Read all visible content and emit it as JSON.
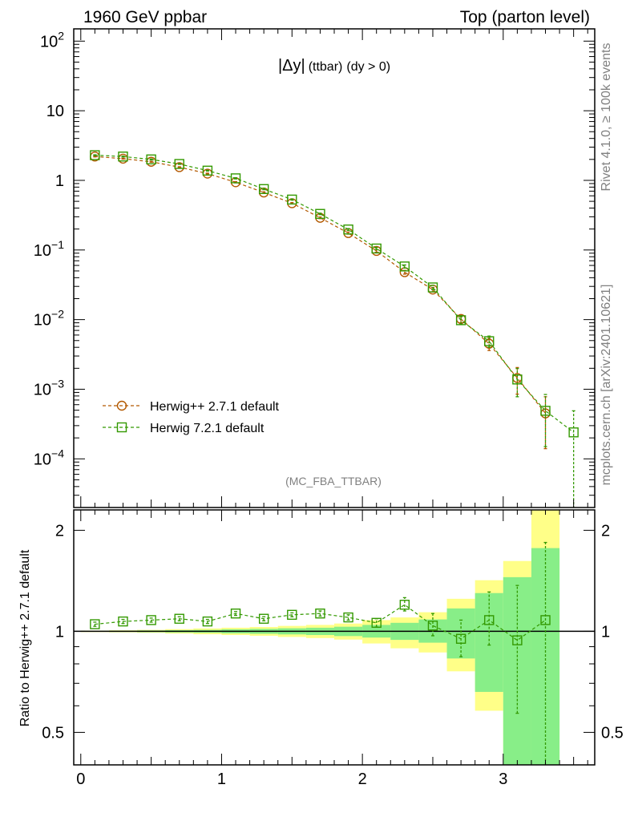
{
  "header": {
    "left": "1960 GeV ppbar",
    "right": "Top (parton level)"
  },
  "side": {
    "rivet": "Rivet 4.1.0, ≥ 100k events",
    "mcplots": "mcplots.cern.ch [arXiv:2401.10621]"
  },
  "colors": {
    "herwigpp": "#b35900",
    "herwig7": "#339900",
    "band_yellow": "#ffff88",
    "band_green": "#88ee88"
  },
  "chart_data": [
    {
      "type": "line",
      "title_prefix": "|Δy|",
      "title_sub": "(ttbar)",
      "title_suffix": "(dy > 0)",
      "analysis_tag": "(MC_FBA_TTBAR)",
      "yscale": "log",
      "ylim": [
        2e-05,
        150
      ],
      "xlim": [
        -0.05,
        3.65
      ],
      "y_ticks": [
        {
          "v": 0.0001,
          "base": "10",
          "exp": "−4"
        },
        {
          "v": 0.001,
          "base": "10",
          "exp": "−3"
        },
        {
          "v": 0.01,
          "base": "10",
          "exp": "−2"
        },
        {
          "v": 0.1,
          "base": "10",
          "exp": "−1"
        },
        {
          "v": 1,
          "base": "1",
          "exp": ""
        },
        {
          "v": 10,
          "base": "10",
          "exp": ""
        },
        {
          "v": 100,
          "base": "10",
          "exp": "2"
        }
      ],
      "legend_position": "lower-left",
      "series": [
        {
          "name": "Herwig++ 2.7.1 default",
          "marker": "circle",
          "x": [
            0.1,
            0.3,
            0.5,
            0.7,
            0.9,
            1.1,
            1.3,
            1.5,
            1.7,
            1.9,
            2.1,
            2.3,
            2.5,
            2.7,
            2.9,
            3.1,
            3.3
          ],
          "y": [
            2.2,
            2.05,
            1.85,
            1.55,
            1.25,
            0.94,
            0.67,
            0.47,
            0.29,
            0.175,
            0.097,
            0.048,
            0.027,
            0.0102,
            0.0045,
            0.00145,
            0.00045
          ],
          "yerr_lo": [
            0.03,
            0.03,
            0.03,
            0.02,
            0.02,
            0.02,
            0.015,
            0.01,
            0.008,
            0.006,
            0.004,
            0.003,
            0.002,
            0.0012,
            0.0009,
            0.0006,
            0.00031
          ],
          "yerr_hi": [
            0.03,
            0.03,
            0.03,
            0.02,
            0.02,
            0.02,
            0.015,
            0.01,
            0.008,
            0.006,
            0.004,
            0.003,
            0.002,
            0.0012,
            0.0009,
            0.0006,
            0.00033
          ]
        },
        {
          "name": "Herwig 7.2.1 default",
          "marker": "square",
          "x": [
            0.1,
            0.3,
            0.5,
            0.7,
            0.9,
            1.1,
            1.3,
            1.5,
            1.7,
            1.9,
            2.1,
            2.3,
            2.5,
            2.7,
            2.9,
            3.1,
            3.3,
            3.5
          ],
          "y": [
            2.3,
            2.2,
            2.0,
            1.72,
            1.38,
            1.07,
            0.75,
            0.53,
            0.33,
            0.197,
            0.105,
            0.058,
            0.029,
            0.0098,
            0.0049,
            0.00138,
            0.00049,
            0.00024
          ],
          "yerr_lo": [
            0.03,
            0.03,
            0.03,
            0.02,
            0.02,
            0.02,
            0.015,
            0.01,
            0.008,
            0.006,
            0.004,
            0.003,
            0.002,
            0.0012,
            0.0009,
            0.0006,
            0.00034,
            0.00023
          ],
          "yerr_hi": [
            0.03,
            0.03,
            0.03,
            0.02,
            0.02,
            0.02,
            0.015,
            0.01,
            0.008,
            0.006,
            0.004,
            0.003,
            0.002,
            0.0012,
            0.0009,
            0.0006,
            0.00035,
            0.00025
          ]
        }
      ]
    },
    {
      "type": "line",
      "ylabel": "Ratio to Herwig++ 2.7.1 default",
      "yscale": "log",
      "ylim": [
        0.4,
        2.3
      ],
      "xlim": [
        -0.05,
        3.65
      ],
      "y_ticks": [
        {
          "v": 0.5,
          "label": "0.5"
        },
        {
          "v": 1,
          "label": "1"
        },
        {
          "v": 2,
          "label": "2"
        }
      ],
      "x_ticks": [
        {
          "v": 0,
          "label": "0"
        },
        {
          "v": 1,
          "label": "1"
        },
        {
          "v": 2,
          "label": "2"
        },
        {
          "v": 3,
          "label": "3"
        }
      ],
      "reference_line": 1,
      "bands": {
        "edges": [
          0,
          0.2,
          0.4,
          0.6,
          0.8,
          1.0,
          1.2,
          1.4,
          1.6,
          1.8,
          2.0,
          2.2,
          2.4,
          2.6,
          2.8,
          3.0,
          3.2,
          3.4
        ],
        "yellow_lo": [
          0.995,
          0.993,
          0.99,
          0.985,
          0.98,
          0.975,
          0.97,
          0.962,
          0.955,
          0.945,
          0.92,
          0.89,
          0.865,
          0.76,
          0.58,
          0.3,
          0.3
        ],
        "yellow_hi": [
          1.005,
          1.007,
          1.01,
          1.015,
          1.02,
          1.025,
          1.03,
          1.038,
          1.045,
          1.055,
          1.08,
          1.1,
          1.14,
          1.25,
          1.42,
          1.62,
          2.4
        ],
        "green_lo": [
          0.997,
          0.996,
          0.994,
          0.992,
          0.99,
          0.986,
          0.983,
          0.979,
          0.975,
          0.968,
          0.958,
          0.943,
          0.925,
          0.83,
          0.66,
          0.3,
          0.3
        ],
        "green_hi": [
          1.003,
          1.004,
          1.006,
          1.008,
          1.01,
          1.014,
          1.017,
          1.021,
          1.025,
          1.032,
          1.045,
          1.06,
          1.085,
          1.17,
          1.3,
          1.45,
          1.77
        ]
      },
      "series": [
        {
          "name": "Herwig 7.2.1 / Herwig++ 2.7.1",
          "marker": "square",
          "x": [
            0.1,
            0.3,
            0.5,
            0.7,
            0.9,
            1.1,
            1.3,
            1.5,
            1.7,
            1.9,
            2.1,
            2.3,
            2.5,
            2.7,
            2.9,
            3.1,
            3.3
          ],
          "y": [
            1.05,
            1.07,
            1.08,
            1.09,
            1.07,
            1.13,
            1.09,
            1.12,
            1.13,
            1.1,
            1.06,
            1.2,
            1.04,
            0.95,
            1.08,
            0.94,
            1.08
          ],
          "yerr_lo": [
            0.015,
            0.015,
            0.015,
            0.015,
            0.015,
            0.015,
            0.015,
            0.015,
            0.02,
            0.02,
            0.03,
            0.05,
            0.07,
            0.11,
            0.17,
            0.37,
            0.75
          ],
          "yerr_hi": [
            0.015,
            0.015,
            0.015,
            0.015,
            0.015,
            0.015,
            0.015,
            0.015,
            0.02,
            0.02,
            0.03,
            0.06,
            0.09,
            0.13,
            0.23,
            0.43,
            0.76
          ]
        }
      ]
    }
  ]
}
